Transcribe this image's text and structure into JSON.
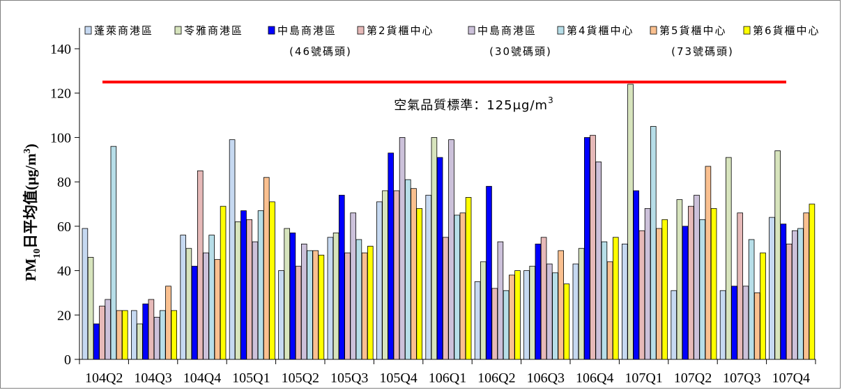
{
  "chart_data": {
    "type": "bar",
    "ylabel": "PM10日平均值(μg/m3)",
    "ylabel_parts": {
      "main": "PM",
      "sub": "10",
      "rest": "日平均值(μg/m",
      "sup": "3",
      "end": ")"
    },
    "ylim": [
      0,
      150
    ],
    "yticks": [
      0,
      20,
      40,
      60,
      80,
      100,
      120,
      140
    ],
    "grid": false,
    "legend_position": "top",
    "categories": [
      "104Q2",
      "104Q3",
      "104Q4",
      "105Q1",
      "105Q2",
      "105Q3",
      "105Q4",
      "106Q1",
      "106Q2",
      "106Q3",
      "106Q4",
      "107Q1",
      "107Q2",
      "107Q3",
      "107Q4"
    ],
    "series": [
      {
        "name": "蓬萊商港區",
        "sublabel": "",
        "color": "#c6d9f1",
        "values": [
          59,
          22,
          56,
          99,
          40,
          55,
          71,
          74,
          35,
          40,
          43,
          52,
          31,
          31,
          64
        ]
      },
      {
        "name": "苓雅商港區",
        "sublabel": "",
        "color": "#d7e4bd",
        "values": [
          46,
          16,
          50,
          62,
          59,
          57,
          76,
          100,
          44,
          42,
          50,
          124,
          72,
          91,
          94
        ]
      },
      {
        "name": "中島商港區",
        "sublabel": "(46號碼頭)",
        "color": "#0000ff",
        "values": [
          16,
          25,
          42,
          67,
          57,
          74,
          93,
          91,
          78,
          52,
          100,
          76,
          60,
          33,
          61
        ]
      },
      {
        "name": "第2貨櫃中心",
        "sublabel": "",
        "color": "#e6b9b8",
        "values": [
          24,
          27,
          85,
          63,
          42,
          48,
          76,
          55,
          32,
          55,
          101,
          58,
          69,
          66,
          52
        ]
      },
      {
        "name": "中島商港區",
        "sublabel": "(30號碼頭)",
        "color": "#ccc1da",
        "values": [
          27,
          19,
          48,
          53,
          52,
          66,
          100,
          99,
          53,
          43,
          89,
          68,
          74,
          33,
          58
        ]
      },
      {
        "name": "第4貨櫃中心",
        "sublabel": "",
        "color": "#b7dee8",
        "values": [
          96,
          22,
          56,
          67,
          49,
          54,
          81,
          65,
          31,
          39,
          53,
          105,
          63,
          54,
          59
        ]
      },
      {
        "name": "第5貨櫃中心",
        "sublabel": "(73號碼頭)",
        "color": "#fac090",
        "values": [
          22,
          33,
          45,
          82,
          49,
          48,
          77,
          66,
          38,
          49,
          44,
          59,
          87,
          30,
          66
        ]
      },
      {
        "name": "第6貨櫃中心",
        "sublabel": "",
        "color": "#ffff00",
        "values": [
          22,
          22,
          69,
          71,
          47,
          51,
          68,
          73,
          40,
          34,
          55,
          63,
          68,
          48,
          70
        ]
      }
    ],
    "reference_line": {
      "value": 125,
      "color": "#ff0000",
      "label": "空氣品質標準：125μg/m",
      "label_sup": "3"
    }
  }
}
